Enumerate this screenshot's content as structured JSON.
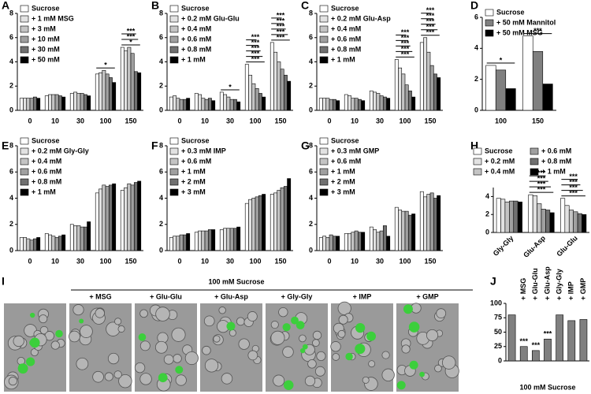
{
  "chart_data": [
    {
      "type": "bar",
      "panel": "A",
      "categories": [
        "0",
        "10",
        "30",
        "100",
        "150"
      ],
      "ylim": [
        0,
        8
      ],
      "yticks": [
        0,
        2,
        4,
        6,
        8
      ],
      "legend": "upper left",
      "series": [
        {
          "name": "Sucrose",
          "color": "#ffffff",
          "values": [
            1.0,
            1.2,
            1.4,
            3.0,
            5.2
          ]
        },
        {
          "name": "+ 1 mM MSG",
          "color": "#e2e2e2",
          "values": [
            1.0,
            1.3,
            1.5,
            3.1,
            4.9
          ]
        },
        {
          "name": "+ 3 mM",
          "color": "#c4c4c4",
          "values": [
            1.0,
            1.3,
            1.4,
            3.3,
            5.2
          ]
        },
        {
          "name": "+ 10 mM",
          "color": "#a0a0a0",
          "values": [
            1.0,
            1.3,
            1.4,
            3.0,
            4.7
          ]
        },
        {
          "name": "+ 30 mM",
          "color": "#707070",
          "values": [
            1.1,
            1.2,
            1.3,
            2.7,
            3.2
          ]
        },
        {
          "name": "+ 50 mM",
          "color": "#000000",
          "values": [
            1.0,
            1.1,
            1.2,
            2.3,
            3.1
          ]
        }
      ],
      "annotations": [
        [],
        [],
        [],
        [
          "*"
        ],
        [
          "*",
          "***",
          "***"
        ]
      ]
    },
    {
      "type": "bar",
      "panel": "B",
      "categories": [
        "0",
        "10",
        "30",
        "100",
        "150"
      ],
      "ylim": [
        0,
        8
      ],
      "yticks": [
        0,
        2,
        4,
        6,
        8
      ],
      "legend": "upper left",
      "series": [
        {
          "name": "Sucrose",
          "color": "#ffffff",
          "values": [
            1.1,
            1.4,
            1.5,
            3.8,
            5.6
          ]
        },
        {
          "name": "+ 0.2 mM Glu-Glu",
          "color": "#e2e2e2",
          "values": [
            1.2,
            1.3,
            1.3,
            2.9,
            4.8
          ]
        },
        {
          "name": "+ 0.4 mM",
          "color": "#c4c4c4",
          "values": [
            1.0,
            1.0,
            1.1,
            2.2,
            4.0
          ]
        },
        {
          "name": "+ 0.6 mM",
          "color": "#a0a0a0",
          "values": [
            0.9,
            0.9,
            0.9,
            1.8,
            3.4
          ]
        },
        {
          "name": "+ 0.8 mM",
          "color": "#707070",
          "values": [
            0.9,
            1.0,
            0.9,
            1.4,
            2.9
          ]
        },
        {
          "name": "+ 1 mM",
          "color": "#000000",
          "values": [
            1.0,
            0.8,
            0.7,
            1.1,
            2.4
          ]
        }
      ],
      "annotations": [
        [],
        [],
        [
          "*"
        ],
        [
          "***",
          "***",
          "***",
          "***",
          "***"
        ],
        [
          "***",
          "***",
          "***",
          "***",
          "***"
        ]
      ]
    },
    {
      "type": "bar",
      "panel": "C",
      "categories": [
        "0",
        "10",
        "30",
        "100",
        "150"
      ],
      "ylim": [
        0,
        8
      ],
      "yticks": [
        0,
        2,
        4,
        6,
        8
      ],
      "legend": "upper left",
      "series": [
        {
          "name": "Sucrose",
          "color": "#ffffff",
          "values": [
            1.0,
            1.3,
            1.6,
            4.2,
            5.6
          ]
        },
        {
          "name": "+ 0.2 mM Glu-Asp",
          "color": "#e2e2e2",
          "values": [
            1.0,
            1.2,
            1.5,
            3.5,
            6.0
          ]
        },
        {
          "name": "+ 0.4 mM",
          "color": "#c4c4c4",
          "values": [
            1.0,
            1.0,
            1.4,
            3.0,
            4.8
          ]
        },
        {
          "name": "+ 0.6 mM",
          "color": "#a0a0a0",
          "values": [
            0.9,
            1.0,
            1.2,
            2.1,
            3.7
          ]
        },
        {
          "name": "+ 0.8 mM",
          "color": "#707070",
          "values": [
            0.9,
            0.9,
            1.1,
            1.6,
            3.0
          ]
        },
        {
          "name": "+ 1 mM",
          "color": "#000000",
          "values": [
            0.8,
            0.8,
            1.0,
            1.1,
            2.7
          ]
        }
      ],
      "annotations": [
        [],
        [],
        [],
        [
          "***",
          "***",
          "***",
          "***",
          "***"
        ],
        [
          "***",
          "***",
          "***",
          "***",
          "***"
        ]
      ]
    },
    {
      "type": "bar",
      "panel": "D",
      "categories": [
        "100",
        "150"
      ],
      "ylim": [
        0,
        6
      ],
      "yticks": [
        0,
        2,
        4,
        6
      ],
      "legend": "upper left",
      "series": [
        {
          "name": "Sucrose",
          "color": "#ffffff",
          "values": [
            2.9,
            4.8
          ]
        },
        {
          "name": "+ 50 mM Mannitol",
          "color": "#808080",
          "values": [
            2.6,
            3.8
          ]
        },
        {
          "name": "+ 50 mM MSG",
          "color": "#000000",
          "values": [
            1.4,
            1.7
          ]
        }
      ],
      "annotations": [
        [
          "*"
        ],
        [
          "***"
        ]
      ]
    },
    {
      "type": "bar",
      "panel": "E",
      "categories": [
        "0",
        "10",
        "30",
        "100",
        "150"
      ],
      "ylim": [
        0,
        8
      ],
      "yticks": [
        0,
        2,
        4,
        6,
        8
      ],
      "legend": "upper left",
      "series": [
        {
          "name": "Sucrose",
          "color": "#ffffff",
          "values": [
            1.0,
            1.3,
            2.0,
            4.4,
            4.6
          ]
        },
        {
          "name": "+ 0.2 mM Gly-Gly",
          "color": "#e2e2e2",
          "values": [
            1.0,
            1.2,
            1.9,
            4.7,
            4.8
          ]
        },
        {
          "name": "+ 0.4 mM",
          "color": "#c4c4c4",
          "values": [
            0.9,
            1.1,
            1.9,
            5.0,
            5.1
          ]
        },
        {
          "name": "+ 0.6 mM",
          "color": "#a0a0a0",
          "values": [
            0.8,
            1.0,
            1.8,
            4.9,
            5.0
          ]
        },
        {
          "name": "+ 0.8 mM",
          "color": "#707070",
          "values": [
            0.9,
            1.1,
            1.8,
            5.0,
            5.2
          ]
        },
        {
          "name": "+ 1 mM",
          "color": "#000000",
          "values": [
            1.0,
            1.2,
            2.2,
            5.1,
            5.3
          ]
        }
      ]
    },
    {
      "type": "bar",
      "panel": "F",
      "categories": [
        "0",
        "10",
        "30",
        "100",
        "150"
      ],
      "ylim": [
        0,
        8
      ],
      "yticks": [
        0,
        2,
        4,
        6,
        8
      ],
      "legend": "upper left",
      "series": [
        {
          "name": "Sucrose",
          "color": "#ffffff",
          "values": [
            1.0,
            1.4,
            1.6,
            3.6,
            4.3
          ]
        },
        {
          "name": "+ 0.3 mM IMP",
          "color": "#e2e2e2",
          "values": [
            1.1,
            1.5,
            1.7,
            3.9,
            4.4
          ]
        },
        {
          "name": "+ 0.6 mM",
          "color": "#c4c4c4",
          "values": [
            1.1,
            1.5,
            1.7,
            4.0,
            4.6
          ]
        },
        {
          "name": "+ 1 mM",
          "color": "#a0a0a0",
          "values": [
            1.2,
            1.5,
            1.7,
            4.1,
            4.8
          ]
        },
        {
          "name": "+ 2 mM",
          "color": "#707070",
          "values": [
            1.2,
            1.6,
            1.7,
            4.2,
            4.9
          ]
        },
        {
          "name": "+ 3 mM",
          "color": "#000000",
          "values": [
            1.3,
            1.6,
            1.8,
            4.3,
            5.5
          ]
        }
      ]
    },
    {
      "type": "bar",
      "panel": "G",
      "categories": [
        "0",
        "10",
        "30",
        "100",
        "150"
      ],
      "ylim": [
        0,
        8
      ],
      "yticks": [
        0,
        2,
        4,
        6,
        8
      ],
      "legend": "upper left",
      "series": [
        {
          "name": "Sucrose",
          "color": "#ffffff",
          "values": [
            1.0,
            1.3,
            1.8,
            3.3,
            4.5
          ]
        },
        {
          "name": "+ 0.3 mM GMP",
          "color": "#e2e2e2",
          "values": [
            1.1,
            1.3,
            1.6,
            3.1,
            4.1
          ]
        },
        {
          "name": "+ 0.6 mM",
          "color": "#c4c4c4",
          "values": [
            1.0,
            1.4,
            1.4,
            3.0,
            4.3
          ]
        },
        {
          "name": "+ 1 mM",
          "color": "#a0a0a0",
          "values": [
            1.2,
            1.5,
            1.5,
            3.0,
            4.4
          ]
        },
        {
          "name": "+ 2 mM",
          "color": "#707070",
          "values": [
            1.1,
            1.4,
            1.9,
            2.7,
            4.0
          ]
        },
        {
          "name": "+ 3 mM",
          "color": "#000000",
          "values": [
            1.1,
            1.4,
            1.1,
            2.8,
            4.2
          ]
        }
      ]
    },
    {
      "type": "bar",
      "panel": "H",
      "categories": [
        "Gly-Gly",
        "Glu-Asp",
        "Glu-Glu"
      ],
      "ylim": [
        0,
        5
      ],
      "yticks": [
        0,
        2,
        4
      ],
      "legend": "top",
      "legend_columns": 2,
      "xtick_rotation": -45,
      "series": [
        {
          "name": "Sucrose",
          "color": "#ffffff",
          "values": [
            3.8,
            4.2,
            3.8
          ]
        },
        {
          "name": "+ 0.2 mM",
          "color": "#e2e2e2",
          "values": [
            3.7,
            4.1,
            3.0
          ]
        },
        {
          "name": "+ 0.4 mM",
          "color": "#c4c4c4",
          "values": [
            3.4,
            3.2,
            2.5
          ]
        },
        {
          "name": "+ 0.6 mM",
          "color": "#a0a0a0",
          "values": [
            3.5,
            2.6,
            2.3
          ]
        },
        {
          "name": "+ 0.8 mM",
          "color": "#707070",
          "values": [
            3.5,
            2.5,
            2.1
          ]
        },
        {
          "name": "+ 1 mM",
          "color": "#000000",
          "values": [
            3.4,
            2.2,
            2.0
          ]
        }
      ],
      "annotations": [
        [],
        [
          "***",
          "***",
          "***",
          "***"
        ],
        [
          "***",
          "***",
          "***",
          "***"
        ]
      ]
    },
    {
      "type": "bar",
      "panel": "J",
      "categories": [
        null,
        "+ MSG",
        "+ Glu-Glu",
        "+ Glu-Asp",
        "+ Gly-Gly",
        "+ IMP",
        "+ GMP"
      ],
      "xtick_position": "top",
      "xtick_rotation": -90,
      "values": [
        80,
        25,
        18,
        38,
        80,
        70,
        72
      ],
      "color": "#808080",
      "xlabel": "100 mM Sucrose",
      "ylim": [
        0,
        100
      ],
      "yticks": [
        0,
        25,
        50,
        75,
        100
      ],
      "annotations": [
        [],
        [
          "***"
        ],
        [
          "***"
        ],
        [
          "***"
        ],
        [],
        [],
        []
      ]
    }
  ],
  "image_panel": {
    "panel": "I",
    "title": "100 mM Sucrose",
    "labels": [
      "+ MSG",
      "+ Glu-Glu",
      "+ Glu-Asp",
      "+ Gly-Gly",
      "+ IMP",
      "+ GMP"
    ]
  }
}
